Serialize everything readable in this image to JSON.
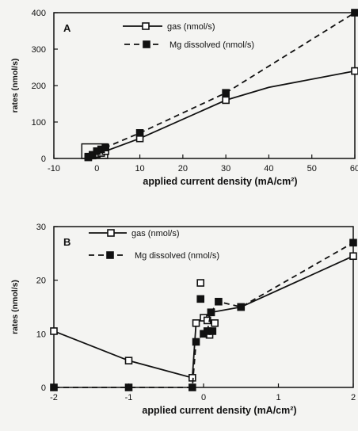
{
  "chart_data": [
    {
      "type": "line",
      "panel_label": "A",
      "xlabel": "applied current density  (mA/cm²)",
      "ylabel": "rates  (nmol/s)",
      "xlim": [
        -10,
        60
      ],
      "ylim": [
        0,
        400
      ],
      "xticks": [
        "-10",
        "0",
        "10",
        "20",
        "30",
        "40",
        "50",
        "60"
      ],
      "yticks": [
        "0",
        "100",
        "200",
        "300",
        "400"
      ],
      "legend_position": "top-center",
      "grid": false,
      "series": [
        {
          "name": "gas (nmol/s)",
          "marker": "open-square",
          "line": "solid",
          "color": "#111111",
          "x": [
            -2,
            -1,
            0,
            1,
            2,
            10,
            30,
            40,
            60
          ],
          "y": [
            5,
            8,
            12,
            15,
            20,
            55,
            160,
            195,
            240
          ],
          "marked": [
            true,
            true,
            true,
            true,
            true,
            true,
            true,
            false,
            true
          ]
        },
        {
          "name": "Mg dissolved (nmol/s)",
          "marker": "filled-square",
          "line": "dashed",
          "color": "#111111",
          "x": [
            -2,
            -1,
            0,
            1,
            2,
            10,
            30,
            60
          ],
          "y": [
            3,
            10,
            20,
            25,
            30,
            70,
            180,
            400
          ],
          "marked": [
            true,
            true,
            true,
            true,
            true,
            true,
            true,
            true
          ]
        }
      ],
      "zoom_box": {
        "x": [
          -3.5,
          2.5
        ],
        "y": [
          0,
          40
        ]
      }
    },
    {
      "type": "line",
      "panel_label": "B",
      "xlabel": "applied current density  (mA/cm²)",
      "ylabel": "rates  (nmol/s)",
      "xlim": [
        -2,
        2
      ],
      "ylim": [
        0,
        30
      ],
      "xticks": [
        "-2",
        "-1",
        "0",
        "1",
        "2"
      ],
      "yticks": [
        "0",
        "10",
        "20",
        "30"
      ],
      "legend_position": "top-left",
      "grid": false,
      "series": [
        {
          "name": "gas (nmol/s)",
          "marker": "open-square",
          "line": "solid",
          "color": "#111111",
          "x": [
            -2,
            -1,
            -0.15,
            -0.1,
            0,
            0.05,
            0.1,
            0.5,
            2
          ],
          "y": [
            10.5,
            5,
            1.8,
            12,
            13,
            12.5,
            14,
            15,
            24.5
          ],
          "extra_points": [
            {
              "x": -0.04,
              "y": 19.5
            },
            {
              "x": 0.08,
              "y": 9.8
            },
            {
              "x": 0.15,
              "y": 12
            }
          ]
        },
        {
          "name": "Mg dissolved (nmol/s)",
          "marker": "filled-square",
          "line": "dashed",
          "color": "#111111",
          "x": [
            -2,
            -1,
            -0.15,
            -0.1,
            0,
            0.05,
            0.1,
            0.2,
            0.5,
            2
          ],
          "y": [
            0,
            0,
            0,
            8.5,
            10,
            10.5,
            14,
            16,
            15,
            27
          ],
          "extra_points": [
            {
              "x": -0.04,
              "y": 16.5
            },
            {
              "x": 0.12,
              "y": 10.5
            }
          ]
        }
      ]
    }
  ]
}
